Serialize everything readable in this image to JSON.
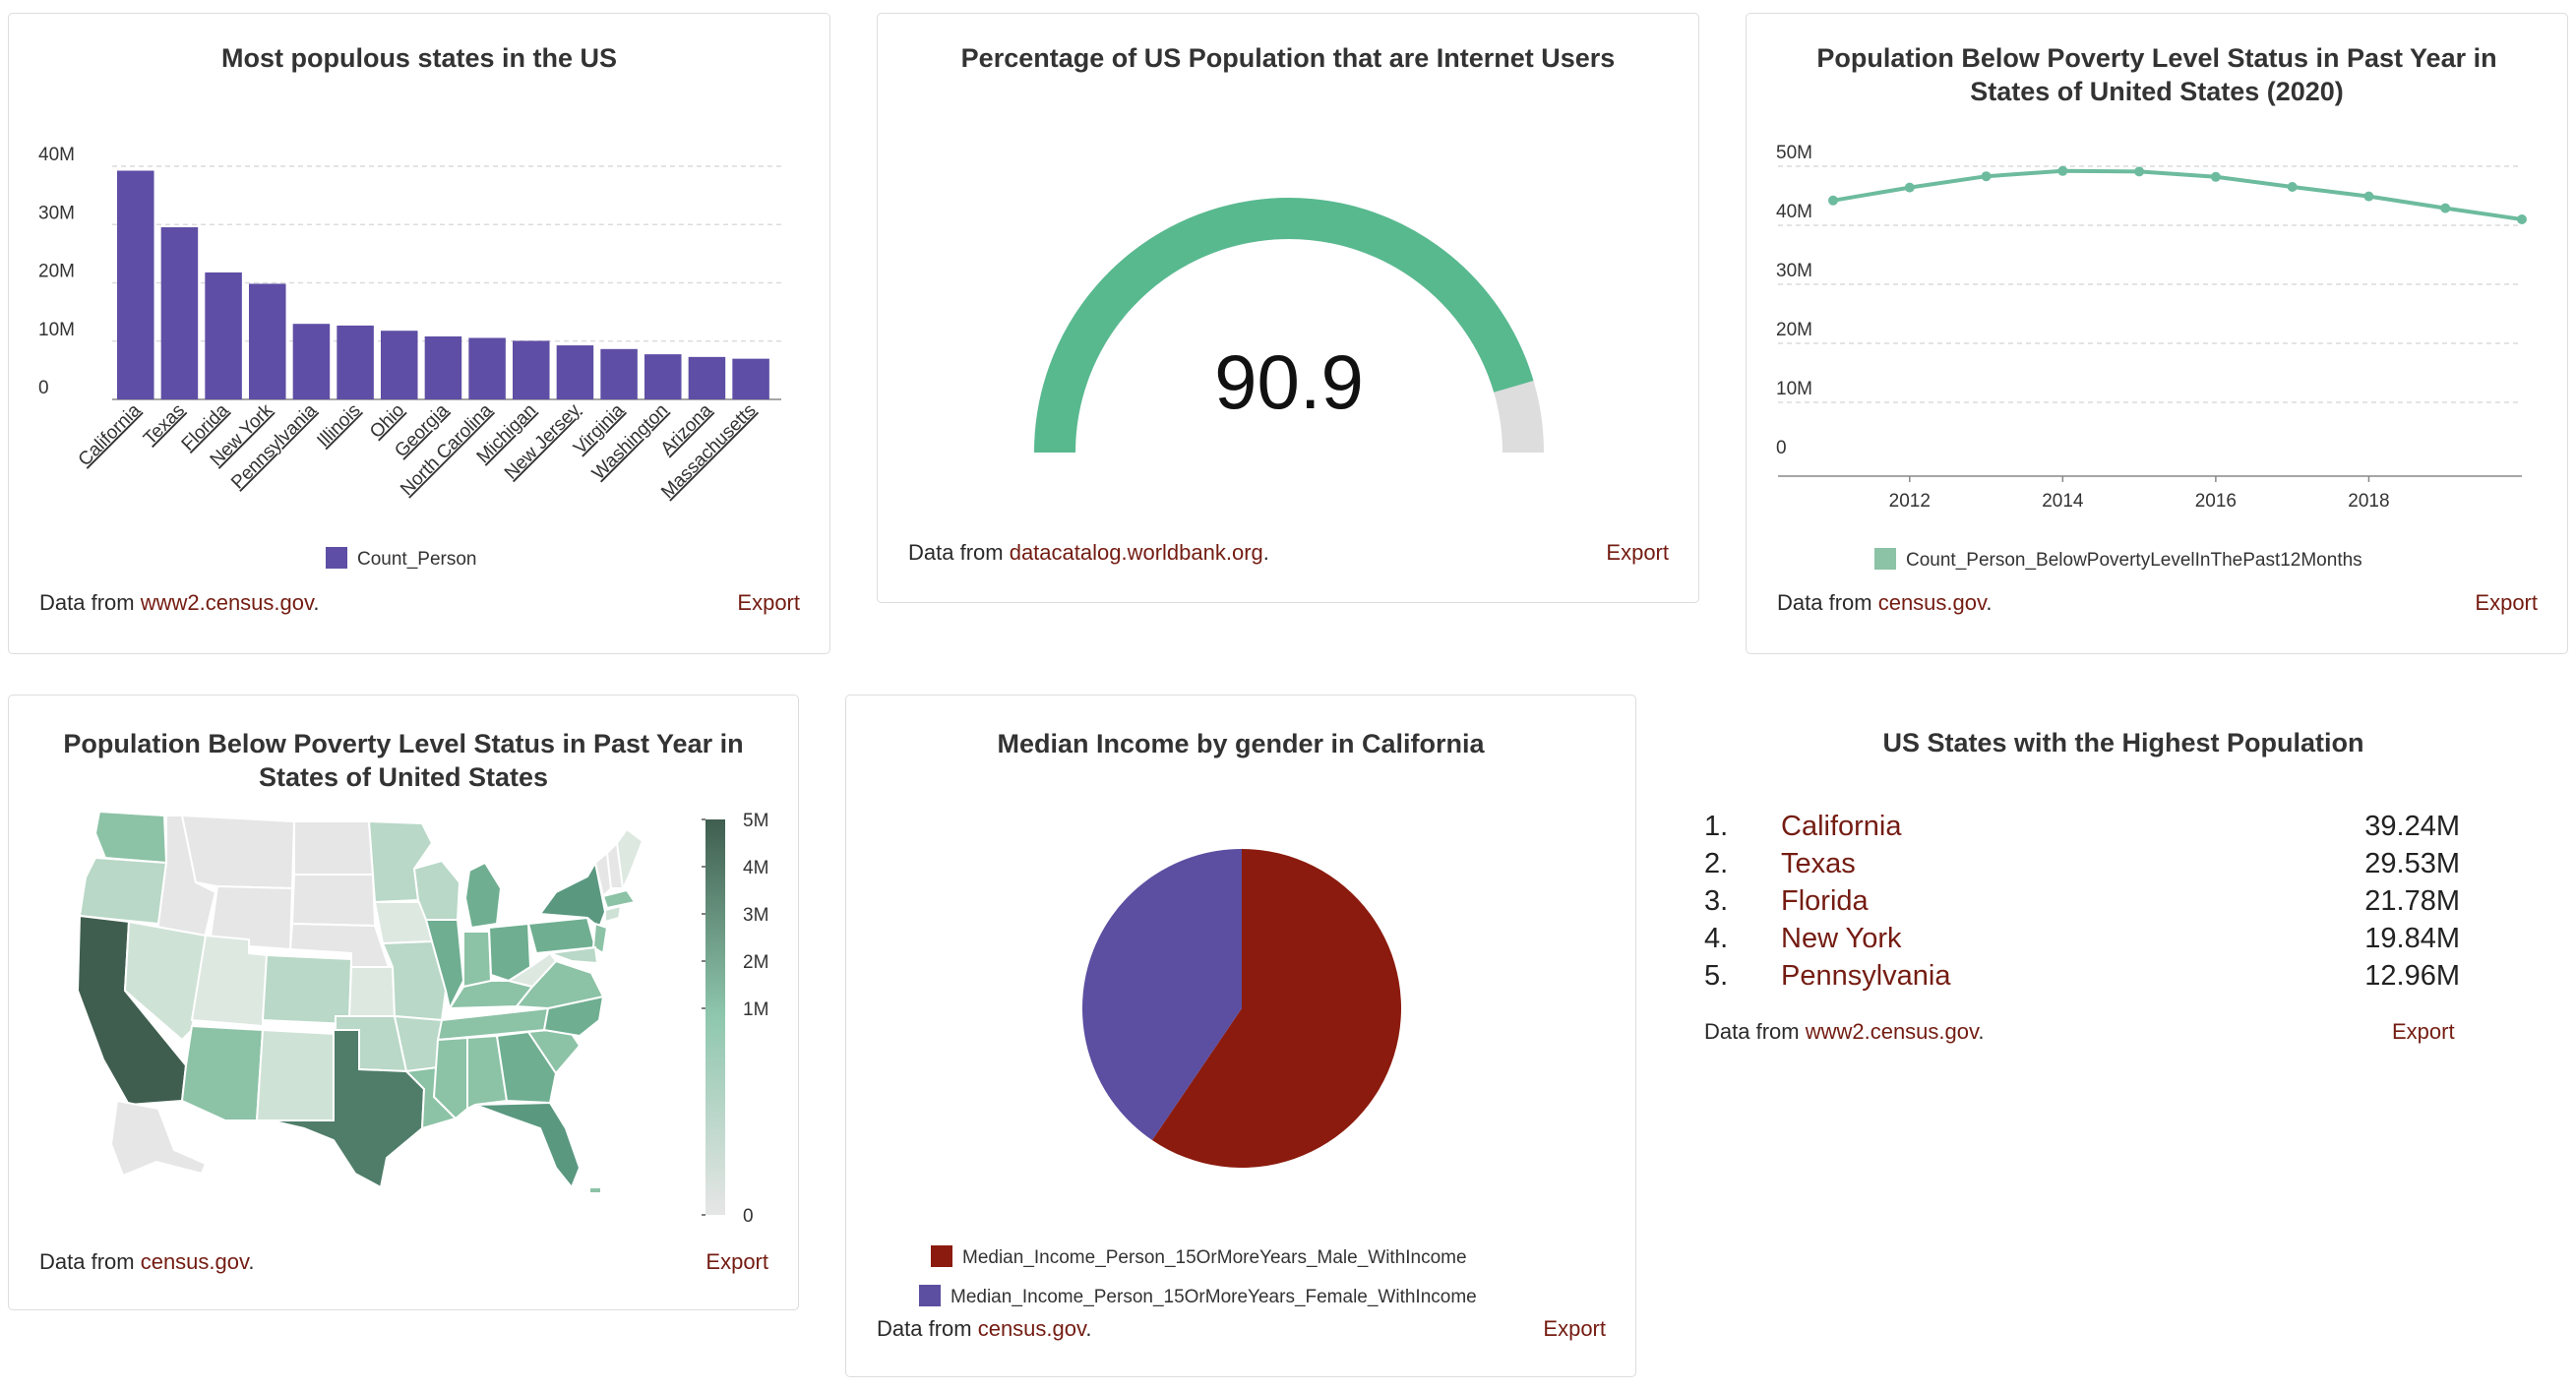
{
  "cards": {
    "populous": {
      "title": "Most populous states in the US",
      "source_prefix": "Data from ",
      "source_link": "www2.census.gov",
      "source_suffix": ".",
      "export_label": "Export"
    },
    "internet": {
      "title": "Percentage of US Population that are Internet Users",
      "source_prefix": "Data from ",
      "source_link": "datacatalog.worldbank.org",
      "source_suffix": ".",
      "export_label": "Export"
    },
    "poverty_line": {
      "title": "Population Below Poverty Level Status in Past Year in States of United States (2020)",
      "source_prefix": "Data from ",
      "source_link": "census.gov",
      "source_suffix": ".",
      "export_label": "Export"
    },
    "poverty_map": {
      "title": "Population Below Poverty Level Status in Past Year in States of United States",
      "source_prefix": "Data from ",
      "source_link": "census.gov",
      "source_suffix": ".",
      "export_label": "Export"
    },
    "income": {
      "title": "Median Income by gender in California",
      "source_prefix": "Data from ",
      "source_link": "census.gov",
      "source_suffix": ".",
      "export_label": "Export"
    },
    "highest": {
      "title": "US States with the Highest Population",
      "source_prefix": "Data from ",
      "source_link": "www2.census.gov",
      "source_suffix": ".",
      "export_label": "Export",
      "items": [
        {
          "rank": "1.",
          "name": "California",
          "value": "39.24M"
        },
        {
          "rank": "2.",
          "name": "Texas",
          "value": "29.53M"
        },
        {
          "rank": "3.",
          "name": "Florida",
          "value": "21.78M"
        },
        {
          "rank": "4.",
          "name": "New York",
          "value": "19.84M"
        },
        {
          "rank": "5.",
          "name": "Pennsylvania",
          "value": "12.96M"
        }
      ]
    }
  },
  "chart_data": [
    {
      "type": "bar",
      "title": "Most populous states in the US",
      "categories": [
        "California",
        "Texas",
        "Florida",
        "New York",
        "Pennsylvania",
        "Illinois",
        "Ohio",
        "Georgia",
        "North Carolina",
        "Michigan",
        "New Jersey",
        "Virginia",
        "Washington",
        "Arizona",
        "Massachusetts"
      ],
      "series": [
        {
          "name": "Count_Person",
          "values": [
            39.24,
            29.53,
            21.78,
            19.84,
            12.96,
            12.67,
            11.78,
            10.8,
            10.55,
            10.05,
            9.27,
            8.64,
            7.74,
            7.28,
            6.98
          ]
        }
      ],
      "y_unit": "M",
      "ylim": [
        0,
        40
      ],
      "yticks": [
        "0",
        "10M",
        "20M",
        "30M",
        "40M"
      ],
      "color": "#5f4ea5",
      "grid": true,
      "legend": "bottom"
    },
    {
      "type": "gauge",
      "title": "Percentage of US Population that are Internet Users",
      "value": 90.9,
      "value_label": "90.9",
      "range": [
        0,
        100
      ],
      "color": "#58b98f",
      "track_color": "#dddddd"
    },
    {
      "type": "line",
      "title": "Population Below Poverty Level Status in Past Year in States of United States (2020)",
      "x": [
        2011,
        2012,
        2013,
        2014,
        2015,
        2016,
        2017,
        2018,
        2019,
        2020
      ],
      "xticks": [
        "2012",
        "2014",
        "2016",
        "2018"
      ],
      "series": [
        {
          "name": "Count_Person_BelowPovertyLevelInThePast12Months",
          "values": [
            44.2,
            46.4,
            48.3,
            49.2,
            49.1,
            48.2,
            46.5,
            44.9,
            42.9,
            41.0
          ]
        }
      ],
      "y_unit": "M",
      "ylim": [
        0,
        50
      ],
      "yticks": [
        "0",
        "10M",
        "20M",
        "30M",
        "40M",
        "50M"
      ],
      "color": "#6dbb9e",
      "grid": true,
      "legend": "bottom"
    },
    {
      "type": "choropleth",
      "title": "Population Below Poverty Level Status in Past Year in States of United States",
      "legend_ticks": [
        "0",
        "1M",
        "2M",
        "3M",
        "4M",
        "5M"
      ],
      "color_low": "#e6e6e6",
      "color_high": "#3f5e4f"
    },
    {
      "type": "pie",
      "title": "Median Income by gender in California",
      "slices": [
        {
          "name": "Median_Income_Person_15OrMoreYears_Male_WithIncome",
          "value": 59.5,
          "color": "#8b1b0e"
        },
        {
          "name": "Median_Income_Person_15OrMoreYears_Female_WithIncome",
          "value": 40.5,
          "color": "#5c4ea1"
        }
      ],
      "legend": "bottom"
    }
  ]
}
